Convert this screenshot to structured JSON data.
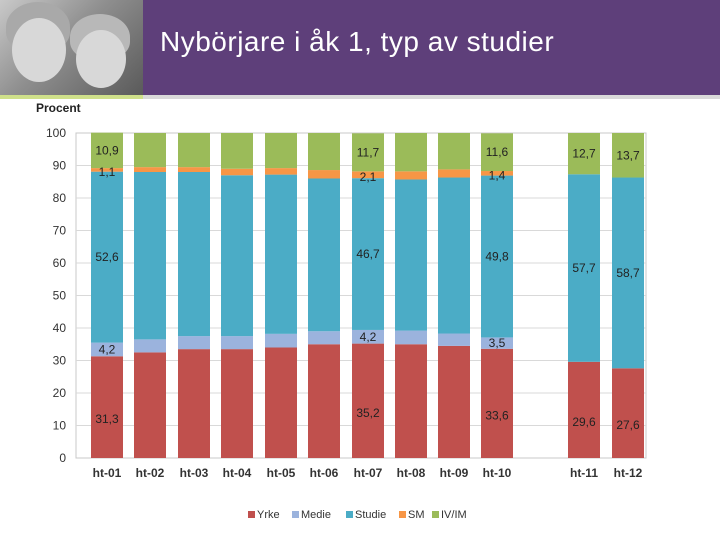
{
  "header": {
    "title": "Nybörjare i åk 1, typ av studier"
  },
  "chart_data": {
    "type": "bar",
    "stacked": true,
    "ylabel": "Procent",
    "ylim": [
      0,
      100
    ],
    "yticks": [
      "0",
      "10",
      "20",
      "30",
      "40",
      "50",
      "60",
      "70",
      "80",
      "90",
      "100"
    ],
    "categories": [
      "ht-01",
      "ht-02",
      "ht-03",
      "ht-04",
      "ht-05",
      "ht-06",
      "ht-07",
      "ht-08",
      "ht-09",
      "ht-10",
      "ht-11",
      "ht-12"
    ],
    "series": [
      {
        "name": "Yrke",
        "color": "#c0504d",
        "values": [
          31.3,
          32.5,
          33.5,
          33.5,
          34,
          35,
          35.2,
          35,
          34.5,
          33.6,
          29.6,
          27.6
        ]
      },
      {
        "name": "Medie",
        "color": "#9bb3dd",
        "values": [
          4.2,
          4,
          4,
          4,
          4.2,
          4,
          4.2,
          4.2,
          3.8,
          3.5,
          0,
          0
        ]
      },
      {
        "name": "Studie",
        "color": "#4bacc6",
        "values": [
          52.6,
          51.5,
          50.5,
          49.5,
          49,
          47,
          46.7,
          46.5,
          48,
          49.8,
          57.7,
          58.7
        ]
      },
      {
        "name": "SM",
        "color": "#f79646",
        "values": [
          1.1,
          1.5,
          1.5,
          2,
          2,
          2.6,
          2.1,
          2.5,
          2.5,
          1.4,
          0,
          0
        ]
      },
      {
        "name": "IV/IM",
        "color": "#9bbb59",
        "values": [
          10.9,
          10.5,
          10.5,
          11,
          10.8,
          11.4,
          11.7,
          11.8,
          11.2,
          11.6,
          12.7,
          13.7
        ]
      }
    ],
    "data_labels": [
      {
        "category": 0,
        "series": 0,
        "text": "31,3"
      },
      {
        "category": 0,
        "series": 1,
        "text": "4,2"
      },
      {
        "category": 0,
        "series": 2,
        "text": "52,6"
      },
      {
        "category": 0,
        "series": 3,
        "text": "1,1"
      },
      {
        "category": 0,
        "series": 4,
        "text": "10,9"
      },
      {
        "category": 6,
        "series": 0,
        "text": "35,2"
      },
      {
        "category": 6,
        "series": 1,
        "text": "4,2"
      },
      {
        "category": 6,
        "series": 2,
        "text": "46,7"
      },
      {
        "category": 6,
        "series": 3,
        "text": "2,1"
      },
      {
        "category": 6,
        "series": 4,
        "text": "11,7"
      },
      {
        "category": 9,
        "series": 0,
        "text": "33,6"
      },
      {
        "category": 9,
        "series": 1,
        "text": "3,5"
      },
      {
        "category": 9,
        "series": 2,
        "text": "49,8"
      },
      {
        "category": 9,
        "series": 3,
        "text": "1,4"
      },
      {
        "category": 9,
        "series": 4,
        "text": "11,6"
      },
      {
        "category": 10,
        "series": 0,
        "text": "29,6"
      },
      {
        "category": 10,
        "series": 2,
        "text": "57,7"
      },
      {
        "category": 10,
        "series": 4,
        "text": "12,7"
      },
      {
        "category": 11,
        "series": 0,
        "text": "27,6"
      },
      {
        "category": 11,
        "series": 2,
        "text": "58,7"
      },
      {
        "category": 11,
        "series": 4,
        "text": "13,7"
      }
    ],
    "grid": true,
    "legend_position": "bottom"
  }
}
